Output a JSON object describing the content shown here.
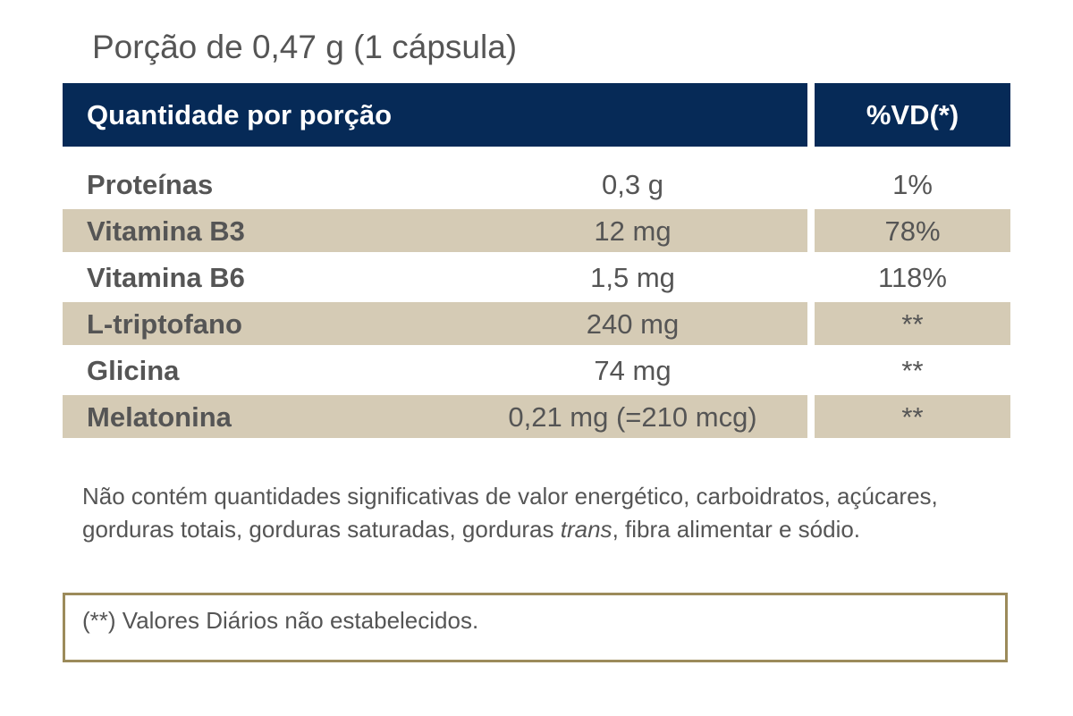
{
  "portion": "Porção de 0,47 g (1 cápsula)",
  "table": {
    "header": [
      "Quantidade por porção",
      "%VD(*)"
    ],
    "rows": [
      [
        "Proteínas",
        "0,3 g",
        "1%"
      ],
      [
        "Vitamina B3",
        "12 mg",
        "78%"
      ],
      [
        "Vitamina B6",
        "1,5 mg",
        "118%"
      ],
      [
        "L-triptofano",
        "240 mg",
        "**"
      ],
      [
        "Glicina",
        "74 mg",
        "**"
      ],
      [
        "Melatonina",
        "0,21 mg (=210 mcg)",
        "**"
      ]
    ]
  },
  "note": {
    "before": "Não contém quantidades significativas de valor energético, carboidratos, açúcares, gorduras totais, gorduras saturadas, gorduras ",
    "italic": "trans",
    "after": ", fibra alimentar e sódio."
  },
  "footnote": "(**) Valores Diários não estabelecidos."
}
